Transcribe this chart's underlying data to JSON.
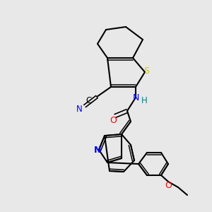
{
  "background_color": "#e8e8e8",
  "bond_color": "#000000",
  "atom_colors": {
    "N": "#0000ff",
    "O": "#ff0000",
    "S": "#cccc00",
    "C": "#000000",
    "H": "#008080"
  },
  "figsize": [
    3.0,
    3.0
  ],
  "dpi": 100
}
